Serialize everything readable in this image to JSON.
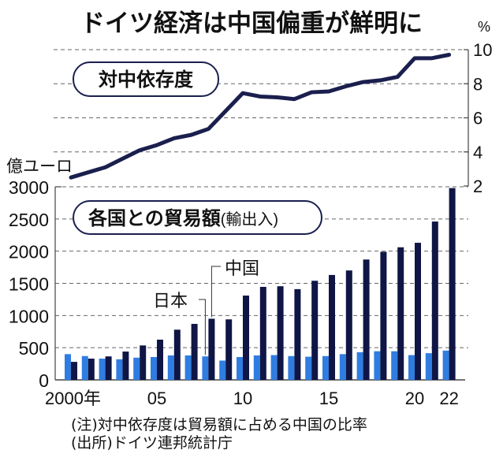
{
  "title": "ドイツ経済は中国偏重が鮮明に",
  "notes": {
    "note": "(注)対中依存度は貿易額に占める中国の比率",
    "source": "(出所)ドイツ連邦統計庁"
  },
  "colors": {
    "china": "#0f1645",
    "japan": "#2f7de0",
    "line": "#1a1f4e",
    "grid": "#666666",
    "axis": "#444444"
  },
  "chart_data": [
    {
      "type": "line",
      "title": "対中依存度",
      "unit_label": "%",
      "ylabel": "%",
      "xlabel": "",
      "ylim": [
        2,
        10
      ],
      "yticks": [
        2,
        4,
        6,
        8,
        10
      ],
      "grid": true,
      "axis_position": "right",
      "x": [
        2000,
        2001,
        2002,
        2003,
        2004,
        2005,
        2006,
        2007,
        2008,
        2009,
        2010,
        2011,
        2012,
        2013,
        2014,
        2015,
        2016,
        2017,
        2018,
        2019,
        2020,
        2021,
        2022
      ],
      "series": [
        {
          "name": "対中依存度",
          "values": [
            2.5,
            2.8,
            3.1,
            3.6,
            4.1,
            4.4,
            4.8,
            5.0,
            5.35,
            6.4,
            7.45,
            7.25,
            7.2,
            7.1,
            7.5,
            7.55,
            7.85,
            8.1,
            8.2,
            8.4,
            9.5,
            9.5,
            9.7
          ]
        }
      ]
    },
    {
      "type": "bar",
      "title": "各国との貿易額",
      "title_suffix": "(輸出入)",
      "unit_label": "億ユーロ",
      "ylabel": "億ユーロ",
      "xlabel": "",
      "ylim": [
        0,
        3000
      ],
      "yticks": [
        0,
        500,
        1000,
        1500,
        2000,
        2500,
        3000
      ],
      "grid": true,
      "categories": [
        2000,
        2001,
        2002,
        2003,
        2004,
        2005,
        2006,
        2007,
        2008,
        2009,
        2010,
        2011,
        2012,
        2013,
        2014,
        2015,
        2016,
        2017,
        2018,
        2019,
        2020,
        2021,
        2022
      ],
      "xtick_labels": [
        {
          "index": 0,
          "label": "2000年"
        },
        {
          "index": 5,
          "label": "05"
        },
        {
          "index": 10,
          "label": "10"
        },
        {
          "index": 15,
          "label": "15"
        },
        {
          "index": 20,
          "label": "20"
        },
        {
          "index": 22,
          "label": "22"
        }
      ],
      "series": [
        {
          "name": "日本",
          "values": [
            400,
            370,
            330,
            320,
            345,
            355,
            380,
            380,
            365,
            300,
            355,
            380,
            385,
            370,
            360,
            370,
            400,
            430,
            445,
            445,
            385,
            415,
            455
          ]
        },
        {
          "name": "中国",
          "values": [
            280,
            330,
            365,
            440,
            535,
            625,
            780,
            870,
            950,
            940,
            1310,
            1445,
            1455,
            1410,
            1540,
            1630,
            1700,
            1870,
            1990,
            2060,
            2130,
            2460,
            2980
          ]
        }
      ],
      "annotations": [
        {
          "text": "日本",
          "series": "日本",
          "index": 8
        },
        {
          "text": "中国",
          "series": "中国",
          "index": 8
        }
      ]
    }
  ]
}
